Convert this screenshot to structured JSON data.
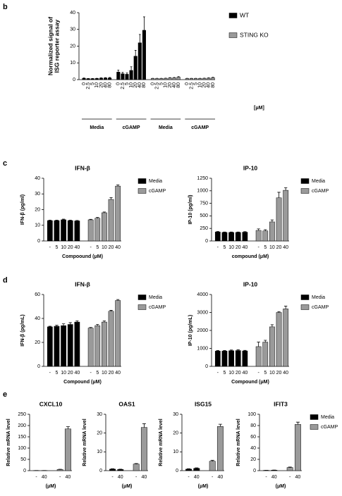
{
  "chart_data": [
    {
      "type": "bar",
      "panel": "b",
      "ylabel": [
        "Normalized signal of",
        "ISG reporter assay"
      ],
      "categories": [
        "0",
        "2.5",
        "5",
        "10",
        "20",
        "40",
        "80",
        "0",
        "2.5",
        "5",
        "10",
        "20",
        "40",
        "80",
        "0",
        "2.5",
        "5",
        "10",
        "20",
        "40",
        "80",
        "0",
        "2.5",
        "5",
        "10",
        "20",
        "40",
        "80"
      ],
      "x_unit": "[μM]",
      "groups": [
        "Media",
        "cGAMP",
        "Media",
        "cGAMP"
      ],
      "ylim": [
        0,
        40
      ],
      "yticks": [
        0,
        10,
        20,
        30,
        40
      ],
      "legend": "right",
      "series": [
        {
          "name": "WT",
          "color": "#000000",
          "values": [
            0.8,
            0.6,
            0.6,
            0.7,
            0.9,
            1.0,
            1.0,
            4.5,
            3.5,
            3.2,
            5.5,
            14,
            22,
            29.5,
            null,
            null,
            null,
            null,
            null,
            null,
            null,
            null,
            null,
            null,
            null,
            null,
            null,
            null
          ],
          "errors": [
            0.2,
            0.1,
            0.1,
            0.1,
            0.2,
            0.2,
            0.3,
            1.2,
            0.8,
            0.8,
            2.2,
            3.5,
            5,
            8,
            null,
            null,
            null,
            null,
            null,
            null,
            null,
            null,
            null,
            null,
            null,
            null,
            null,
            null
          ]
        },
        {
          "name": "STING KO",
          "color": "#9a9a9a",
          "values": [
            null,
            null,
            null,
            null,
            null,
            null,
            null,
            null,
            null,
            null,
            null,
            null,
            null,
            null,
            0.7,
            0.7,
            0.7,
            0.8,
            1.0,
            1.1,
            1.5,
            0.7,
            0.7,
            0.7,
            0.7,
            0.8,
            0.9,
            1.2
          ],
          "errors": [
            null,
            null,
            null,
            null,
            null,
            null,
            null,
            null,
            null,
            null,
            null,
            null,
            null,
            null,
            0.1,
            0.1,
            0.1,
            0.1,
            0.2,
            0.2,
            0.3,
            0.1,
            0.1,
            0.1,
            0.1,
            0.1,
            0.2,
            0.2
          ]
        }
      ]
    },
    {
      "type": "bar",
      "panel": "c",
      "title": "IFN-β",
      "ylabel": [
        "IFN-β (pg/ml)"
      ],
      "xlabel": "Compoound (μM)",
      "categories": [
        "-",
        "5",
        "10",
        "20",
        "40",
        "-",
        "5",
        "10",
        "20",
        "40"
      ],
      "ylim": [
        0,
        40
      ],
      "yticks": [
        0,
        10,
        20,
        30,
        40
      ],
      "legend": "right",
      "series": [
        {
          "name": "Media",
          "color": "#000000",
          "values": [
            13,
            13,
            13.5,
            13,
            12.8,
            null,
            null,
            null,
            null,
            null
          ],
          "errors": [
            0.3,
            0.3,
            0.4,
            0.3,
            0.3,
            null,
            null,
            null,
            null,
            null
          ]
        },
        {
          "name": "cGAMP",
          "color": "#9a9a9a",
          "values": [
            null,
            null,
            null,
            null,
            null,
            13.5,
            14.5,
            18,
            26.5,
            35
          ],
          "errors": [
            null,
            null,
            null,
            null,
            null,
            0.3,
            0.5,
            0.5,
            1.2,
            0.8
          ]
        }
      ]
    },
    {
      "type": "bar",
      "title": "IP-10",
      "ylabel": [
        "IP-10 (pg/ml)"
      ],
      "xlabel": "compound (μM)",
      "categories": [
        "-",
        "5",
        "10",
        "20",
        "40",
        "-",
        "5",
        "10",
        "20",
        "40"
      ],
      "ylim": [
        0,
        1250
      ],
      "yticks": [
        0,
        250,
        500,
        750,
        1000,
        1250
      ],
      "legend": "right",
      "series": [
        {
          "name": "Media",
          "color": "#000000",
          "values": [
            180,
            170,
            170,
            170,
            175,
            null,
            null,
            null,
            null,
            null
          ],
          "errors": [
            10,
            8,
            8,
            8,
            10,
            null,
            null,
            null,
            null,
            null
          ]
        },
        {
          "name": "cGAMP",
          "color": "#9a9a9a",
          "values": [
            null,
            null,
            null,
            null,
            null,
            210,
            200,
            380,
            860,
            1010
          ],
          "errors": [
            null,
            null,
            null,
            null,
            null,
            30,
            25,
            40,
            110,
            50
          ]
        }
      ]
    },
    {
      "type": "bar",
      "panel": "d",
      "title": "IFN-β",
      "ylabel": [
        "IFN-β (pg/mL)"
      ],
      "xlabel": "Compound (μM)",
      "categories": [
        "-",
        "5",
        "10",
        "20",
        "40",
        "-",
        "5",
        "10",
        "20",
        "40"
      ],
      "ylim": [
        0,
        60
      ],
      "yticks": [
        0,
        20,
        40,
        60
      ],
      "legend": "right",
      "series": [
        {
          "name": "Media",
          "color": "#000000",
          "values": [
            33,
            33.5,
            34,
            35,
            37,
            null,
            null,
            null,
            null,
            null
          ],
          "errors": [
            0.5,
            0.8,
            1.5,
            1.5,
            1,
            null,
            null,
            null,
            null,
            null
          ]
        },
        {
          "name": "cGAMP",
          "color": "#9a9a9a",
          "values": [
            null,
            null,
            null,
            null,
            null,
            32,
            34,
            37,
            46,
            55
          ],
          "errors": [
            null,
            null,
            null,
            null,
            null,
            0.5,
            1,
            1,
            0.8,
            0.8
          ]
        }
      ]
    },
    {
      "type": "bar",
      "title": "IP-10",
      "ylabel": [
        "IP-10 (pg/mL)"
      ],
      "xlabel": "Compound (μM)",
      "categories": [
        "-",
        "5",
        "10",
        "20",
        "40",
        "-",
        "5",
        "10",
        "20",
        "40"
      ],
      "ylim": [
        0,
        4000
      ],
      "yticks": [
        0,
        1000,
        2000,
        3000,
        4000
      ],
      "legend": "right",
      "series": [
        {
          "name": "Media",
          "color": "#000000",
          "values": [
            850,
            850,
            870,
            880,
            860,
            null,
            null,
            null,
            null,
            null
          ],
          "errors": [
            30,
            30,
            40,
            40,
            30,
            null,
            null,
            null,
            null,
            null
          ]
        },
        {
          "name": "cGAMP",
          "color": "#9a9a9a",
          "values": [
            null,
            null,
            null,
            null,
            null,
            1100,
            1350,
            2200,
            3000,
            3200
          ],
          "errors": [
            null,
            null,
            null,
            null,
            null,
            250,
            100,
            120,
            50,
            150
          ]
        }
      ]
    },
    {
      "type": "bar",
      "panel": "e",
      "title": "CXCL10",
      "ylabel": [
        "Relative mRNA level"
      ],
      "xlabel": "(μM)",
      "categories": [
        "-",
        "40",
        "-",
        "40"
      ],
      "ylim": [
        0,
        250
      ],
      "yticks": [
        0,
        50,
        100,
        150,
        200,
        250
      ],
      "series": [
        {
          "name": "Media",
          "color": "#000000",
          "values": [
            0.5,
            0.5,
            null,
            null
          ],
          "errors": [
            0.2,
            0.2,
            null,
            null
          ]
        },
        {
          "name": "cGAMP",
          "color": "#9a9a9a",
          "values": [
            null,
            null,
            5,
            185
          ],
          "errors": [
            null,
            null,
            1,
            10
          ]
        }
      ]
    },
    {
      "type": "bar",
      "title": "OAS1",
      "ylabel": [
        "Relative mRNA level"
      ],
      "xlabel": "(μM)",
      "categories": [
        "-",
        "40",
        "-",
        "40"
      ],
      "ylim": [
        0,
        30
      ],
      "yticks": [
        0,
        10,
        20,
        30
      ],
      "series": [
        {
          "name": "Media",
          "color": "#000000",
          "values": [
            0.8,
            0.6,
            null,
            null
          ],
          "errors": [
            0.2,
            0.2,
            null,
            null
          ]
        },
        {
          "name": "cGAMP",
          "color": "#9a9a9a",
          "values": [
            null,
            null,
            3.5,
            23
          ],
          "errors": [
            null,
            null,
            0.3,
            2
          ]
        }
      ]
    },
    {
      "type": "bar",
      "title": "ISG15",
      "ylabel": [
        "Relative mRNA level"
      ],
      "xlabel": "(μM)",
      "categories": [
        "-",
        "40",
        "-",
        "40"
      ],
      "ylim": [
        0,
        30
      ],
      "yticks": [
        0,
        10,
        20,
        30
      ],
      "series": [
        {
          "name": "Media",
          "color": "#000000",
          "values": [
            0.8,
            1.2,
            null,
            null
          ],
          "errors": [
            0.2,
            0.3,
            null,
            null
          ]
        },
        {
          "name": "cGAMP",
          "color": "#9a9a9a",
          "values": [
            null,
            null,
            5,
            23.5
          ],
          "errors": [
            null,
            null,
            0.5,
            1.2
          ]
        }
      ]
    },
    {
      "type": "bar",
      "title": "IFIT3",
      "ylabel": [
        "Relative mRNA level"
      ],
      "xlabel": "(μM)",
      "categories": [
        "-",
        "40",
        "-",
        "40"
      ],
      "ylim": [
        0,
        100
      ],
      "yticks": [
        0,
        20,
        40,
        60,
        80,
        100
      ],
      "legend": "right",
      "series": [
        {
          "name": "Media",
          "color": "#000000",
          "values": [
            0.5,
            0.8,
            null,
            null
          ],
          "errors": [
            0.1,
            0.2,
            null,
            null
          ]
        },
        {
          "name": "cGAMP",
          "color": "#9a9a9a",
          "values": [
            null,
            null,
            5.5,
            82
          ],
          "errors": [
            null,
            null,
            0.8,
            4
          ]
        }
      ]
    }
  ]
}
